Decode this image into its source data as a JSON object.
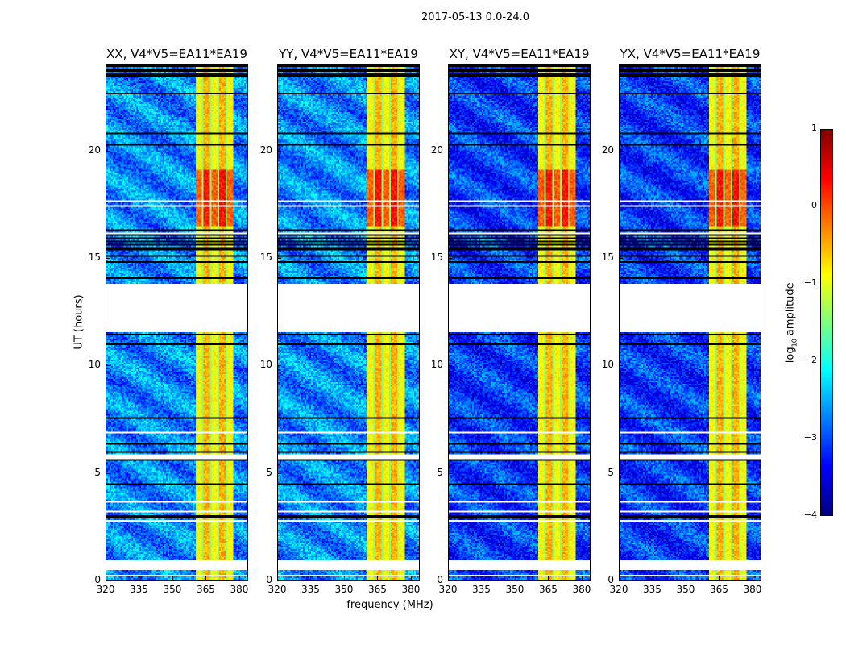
{
  "chart_data": {
    "type": "heatmap",
    "title": "2017-05-13 0.0-24.0",
    "xlabel": "frequency (MHz)",
    "ylabel": "UT (hours)",
    "xlim": [
      320,
      384
    ],
    "ylim": [
      0,
      24
    ],
    "xticks": [
      "320",
      "335",
      "350",
      "365",
      "380"
    ],
    "xtick_values": [
      320,
      335,
      350,
      365,
      380
    ],
    "yticks": [
      "0",
      "5",
      "10",
      "15",
      "20"
    ],
    "ytick_values": [
      0,
      5,
      10,
      15,
      20
    ],
    "panels": [
      {
        "title": "XX, V4*V5=EA11*EA19"
      },
      {
        "title": "YY, V4*V5=EA11*EA19"
      },
      {
        "title": "XY, V4*V5=EA11*EA19"
      },
      {
        "title": "YX, V4*V5=EA11*EA19"
      }
    ],
    "colorbar": {
      "label": "log10 amplitude",
      "label_main": "log",
      "label_sub": "10",
      "label_rest": " amplitude",
      "range": [
        -4,
        1
      ],
      "ticks": [
        "1",
        "0",
        "−1",
        "−2",
        "−3",
        "−4"
      ],
      "tick_values": [
        1,
        0,
        -1,
        -2,
        -3,
        -4
      ],
      "colormap": "jet"
    },
    "features": {
      "background_level": -2.7,
      "rfi_band_mhz": [
        360,
        377
      ],
      "rfi_band_level": -0.8,
      "strong_rfi_hours": [
        16.5,
        19.2
      ],
      "strong_rfi_level": 0.2,
      "flagged_gap_hours": [
        [
          11.6,
          13.8
        ],
        [
          0.5,
          0.9
        ]
      ]
    }
  }
}
